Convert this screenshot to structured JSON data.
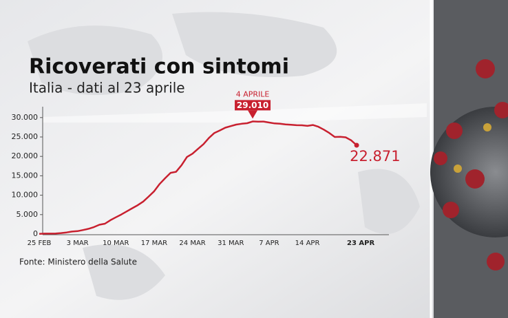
{
  "chart_data": {
    "type": "line",
    "title": "Ricoverati con sintomi",
    "subtitle": "Italia - dati al 23 aprile",
    "source": "Fonte: Ministero della Salute",
    "annotation": "4 APRILE",
    "color": "#c8202f",
    "categories": [
      "25 FEB",
      null,
      null,
      null,
      null,
      null,
      null,
      "3 MAR",
      null,
      null,
      null,
      null,
      null,
      null,
      "10 MAR",
      null,
      null,
      null,
      null,
      null,
      null,
      "17 MAR",
      null,
      null,
      null,
      null,
      null,
      null,
      "24 MAR",
      null,
      null,
      null,
      null,
      null,
      null,
      "31 MAR",
      null,
      null,
      null,
      null,
      null,
      null,
      "7 APR",
      null,
      null,
      null,
      null,
      null,
      null,
      "14 APR",
      null,
      null,
      null,
      null,
      null,
      null,
      null,
      null,
      "23 APR"
    ],
    "values": [
      54,
      99,
      114,
      128,
      248,
      401,
      639,
      742,
      1034,
      1346,
      1790,
      2394,
      2651,
      3557,
      4316,
      5038,
      5838,
      6650,
      7426,
      8372,
      9663,
      11025,
      12894,
      14363,
      15757,
      16020,
      17708,
      19846,
      20692,
      21937,
      23112,
      24753,
      26029,
      26676,
      27386,
      27795,
      28192,
      28403,
      28540,
      29010,
      28949,
      28976,
      28718,
      28485,
      28399,
      28242,
      28144,
      28023,
      28011,
      27847,
      28083,
      27643,
      26893,
      26033,
      25007,
      25033,
      24906,
      24134,
      22871
    ],
    "value_labels": [
      null,
      null,
      null,
      null,
      null,
      null,
      null,
      null,
      null,
      null,
      null,
      null,
      null,
      null,
      null,
      null,
      null,
      null,
      null,
      null,
      null,
      null,
      null,
      null,
      null,
      null,
      null,
      null,
      null,
      null,
      null,
      null,
      null,
      null,
      null,
      null,
      null,
      null,
      null,
      "29.010",
      null,
      null,
      null,
      null,
      null,
      null,
      null,
      null,
      null,
      null,
      null,
      null,
      null,
      null,
      null,
      null,
      null,
      null,
      "22.871"
    ],
    "ylim": [
      0,
      32800
    ],
    "yticks": [
      0,
      {
        "value": 5000,
        "label": "5.000"
      },
      {
        "value": 10000,
        "label": "10.000"
      },
      {
        "value": 15000,
        "label": "15.000"
      },
      {
        "value": 20000,
        "label": "20.000"
      },
      {
        "value": 25000,
        "label": "25.000"
      },
      {
        "value": 30000,
        "label": "30.000"
      }
    ]
  }
}
